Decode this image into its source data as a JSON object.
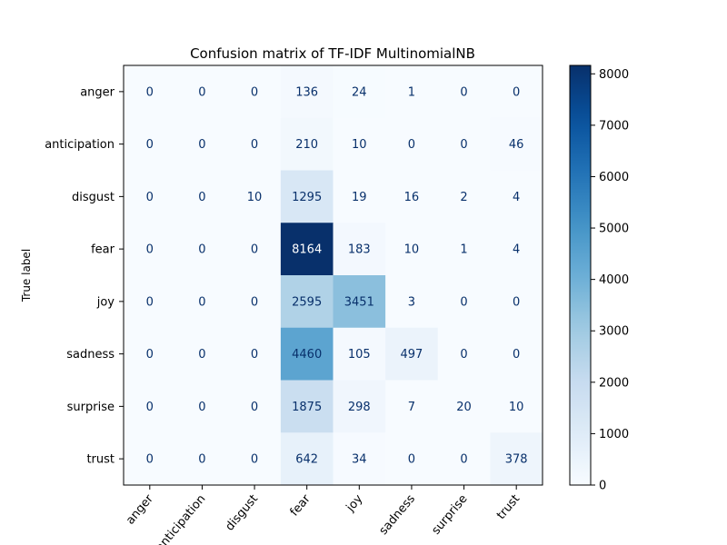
{
  "chart_data": {
    "type": "heatmap",
    "title": "Confusion matrix of TF-IDF MultinomialNB",
    "xlabel": "",
    "ylabel": "True label",
    "x_categories": [
      "anger",
      "anticipation",
      "disgust",
      "fear",
      "joy",
      "sadness",
      "surprise",
      "trust"
    ],
    "y_categories": [
      "anger",
      "anticipation",
      "disgust",
      "fear",
      "joy",
      "sadness",
      "surprise",
      "trust"
    ],
    "values": [
      [
        0,
        0,
        0,
        136,
        24,
        1,
        0,
        0
      ],
      [
        0,
        0,
        0,
        210,
        10,
        0,
        0,
        46
      ],
      [
        0,
        0,
        10,
        1295,
        19,
        16,
        2,
        4
      ],
      [
        0,
        0,
        0,
        8164,
        183,
        10,
        1,
        4
      ],
      [
        0,
        0,
        0,
        2595,
        3451,
        3,
        0,
        0
      ],
      [
        0,
        0,
        0,
        4460,
        105,
        497,
        0,
        0
      ],
      [
        0,
        0,
        0,
        1875,
        298,
        7,
        20,
        10
      ],
      [
        0,
        0,
        0,
        642,
        34,
        0,
        0,
        378
      ]
    ],
    "colormap": "Blues",
    "colorbar": {
      "range": [
        0,
        8164
      ],
      "ticks": [
        0,
        1000,
        2000,
        3000,
        4000,
        5000,
        6000,
        7000,
        8000
      ]
    },
    "grid": false
  }
}
